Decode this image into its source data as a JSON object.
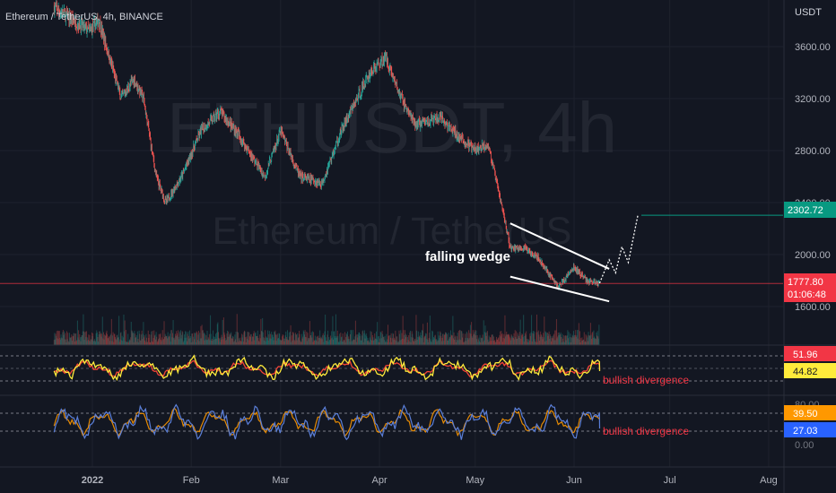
{
  "header": {
    "symbol_line": "Ethereum / TetherUS, 4h, BINANCE",
    "currency": "USDT"
  },
  "watermark": {
    "ticker": "ETHUSDT, 4h",
    "name": "Ethereum / TetherUS"
  },
  "colors": {
    "background": "#131722",
    "up_candle": "#26a69a",
    "down_candle": "#ef5350",
    "target_line": "#089981",
    "price_line": "#f23645",
    "rsi_line": "#ffeb3b",
    "rsi_signal": "#f44336",
    "stoch_k": "#5b7fd8",
    "stoch_d": "#ff9800",
    "annotation_red": "#f23645"
  },
  "chart_data": [
    {
      "type": "candlestick",
      "title": "Ethereum / TetherUS, 4h, BINANCE",
      "x_ticks": [
        "2022",
        "Feb",
        "Mar",
        "Apr",
        "May",
        "Jun",
        "Jul",
        "Aug"
      ],
      "y_unit": "USDT",
      "y_ticks": [
        1600,
        2000,
        2400,
        2800,
        3200,
        3600
      ],
      "y_tick_labels": [
        "1600.00",
        "2000.00",
        "2400.00",
        "2800.00",
        "3200.00",
        "3600.00"
      ],
      "ylim": [
        1420,
        3680
      ],
      "price_path": {
        "dates": [
          "2021-12-20",
          "2021-12-31",
          "2022-01-03",
          "2022-01-10",
          "2022-01-14",
          "2022-01-17",
          "2022-01-21",
          "2022-01-24",
          "2022-01-29",
          "2022-02-04",
          "2022-02-10",
          "2022-02-15",
          "2022-02-24",
          "2022-03-01",
          "2022-03-07",
          "2022-03-14",
          "2022-03-20",
          "2022-03-29",
          "2022-04-03",
          "2022-04-07",
          "2022-04-12",
          "2022-04-20",
          "2022-04-26",
          "2022-05-01",
          "2022-05-05",
          "2022-05-10",
          "2022-05-12",
          "2022-05-16",
          "2022-05-20",
          "2022-05-27",
          "2022-06-01",
          "2022-06-05",
          "2022-06-09"
        ],
        "close": [
          3900,
          3720,
          3800,
          3200,
          3350,
          3200,
          2600,
          2400,
          2600,
          2950,
          3100,
          2950,
          2600,
          2950,
          2600,
          2550,
          2950,
          3400,
          3520,
          3250,
          3000,
          3050,
          2900,
          2800,
          2850,
          2300,
          2050,
          2050,
          2000,
          1750,
          1900,
          1800,
          1777.8
        ]
      },
      "annotations": {
        "pattern_label": "falling wedge",
        "wedge_upper": {
          "from": [
            "2022-05-12",
            2240
          ],
          "to": [
            "2022-06-12",
            1890
          ]
        },
        "wedge_lower": {
          "from": [
            "2022-05-12",
            1830
          ],
          "to": [
            "2022-06-12",
            1640
          ]
        },
        "projection_dates": [
          "2022-06-09",
          "2022-06-12",
          "2022-06-14",
          "2022-06-16",
          "2022-06-18",
          "2022-06-21"
        ],
        "projection_prices": [
          1780,
          1960,
          1860,
          2060,
          1940,
          2302.72
        ]
      },
      "price_markers": {
        "target": {
          "value": 2302.72,
          "label": "2302.72"
        },
        "last": {
          "value": 1777.8,
          "label": "1777.80",
          "countdown": "01:06:48"
        }
      }
    },
    {
      "type": "line",
      "name": "rsi-pane",
      "values_current": {
        "signal": 51.96,
        "rsi": 44.82
      },
      "labels": {
        "signal": "51.96",
        "rsi": "44.82"
      },
      "reference_lines": [
        "dashed-upper",
        "dashed-middle",
        "dashed-lower"
      ],
      "annotation": "bullish divergence"
    },
    {
      "type": "line",
      "name": "stochastic-pane",
      "values_current": {
        "d": 39.5,
        "k": 27.03
      },
      "labels": {
        "d": "39.50",
        "k": "27.03"
      },
      "annotation": "bullish divergence",
      "axis_labels_partial": [
        "80.00",
        "0.00"
      ]
    }
  ]
}
